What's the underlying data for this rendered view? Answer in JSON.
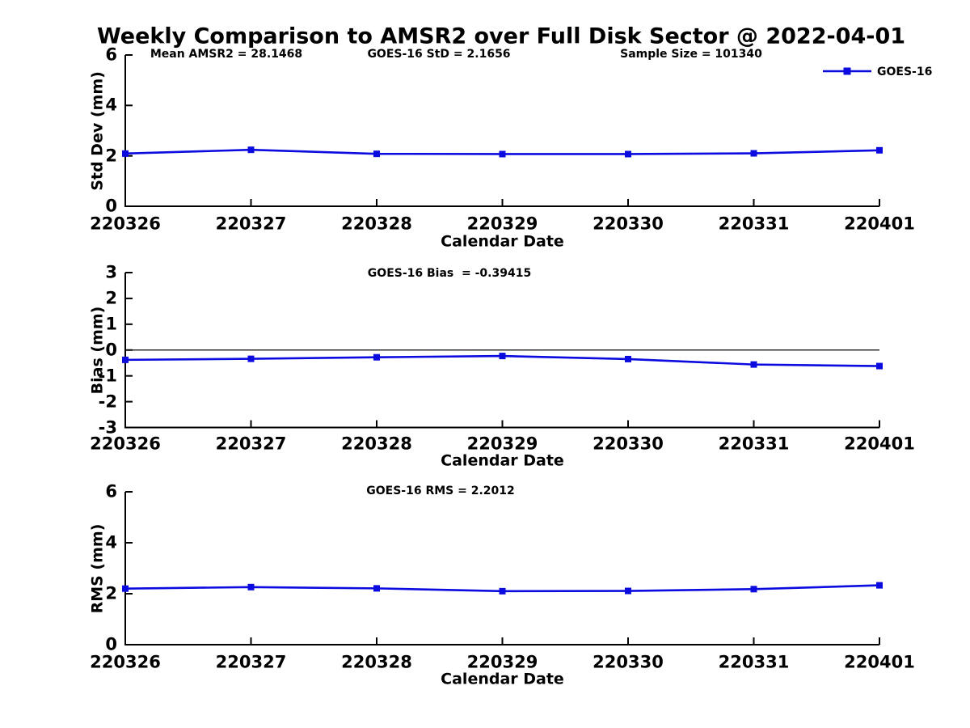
{
  "title": "Weekly Comparison to AMSR2 over Full Disk Sector @ 2022-04-01",
  "legend": {
    "label": "GOES-16",
    "position": "top-right"
  },
  "colors": {
    "line": "#0b0be0",
    "axis": "#000000",
    "text": "#000000",
    "background": "#ffffff"
  },
  "chart_data": [
    {
      "type": "line",
      "ylabel": "Std Dev (mm)",
      "xlabel": "Calendar Date",
      "ylim": [
        0,
        6
      ],
      "yticks": [
        0,
        2,
        4,
        6
      ],
      "grid": false,
      "categories": [
        "220326",
        "220327",
        "220328",
        "220329",
        "220330",
        "220331",
        "220401"
      ],
      "series": [
        {
          "name": "GOES-16",
          "marker": "square",
          "values": [
            2.09,
            2.24,
            2.08,
            2.07,
            2.07,
            2.1,
            2.22
          ]
        }
      ],
      "annotations": [
        "Mean AMSR2 = 28.1468",
        "GOES-16 StD = 2.1656",
        "Sample Size = 101340"
      ]
    },
    {
      "type": "line",
      "ylabel": "Bias (mm)",
      "xlabel": "Calendar Date",
      "ylim": [
        -3,
        3
      ],
      "yticks": [
        -3,
        -2,
        -1,
        0,
        1,
        2,
        3
      ],
      "zero_line": true,
      "grid": false,
      "categories": [
        "220326",
        "220327",
        "220328",
        "220329",
        "220330",
        "220331",
        "220401"
      ],
      "series": [
        {
          "name": "GOES-16",
          "marker": "square",
          "values": [
            -0.38,
            -0.34,
            -0.28,
            -0.23,
            -0.35,
            -0.56,
            -0.62
          ]
        }
      ],
      "annotations": [
        "GOES-16 Bias  = -0.39415"
      ]
    },
    {
      "type": "line",
      "ylabel": "RMS (mm)",
      "xlabel": "Calendar Date",
      "ylim": [
        0,
        6
      ],
      "yticks": [
        0,
        2,
        4,
        6
      ],
      "grid": false,
      "categories": [
        "220326",
        "220327",
        "220328",
        "220329",
        "220330",
        "220331",
        "220401"
      ],
      "series": [
        {
          "name": "GOES-16",
          "marker": "square",
          "values": [
            2.2,
            2.26,
            2.21,
            2.1,
            2.11,
            2.18,
            2.33
          ]
        }
      ],
      "annotations": [
        "GOES-16 RMS = 2.2012"
      ]
    }
  ]
}
